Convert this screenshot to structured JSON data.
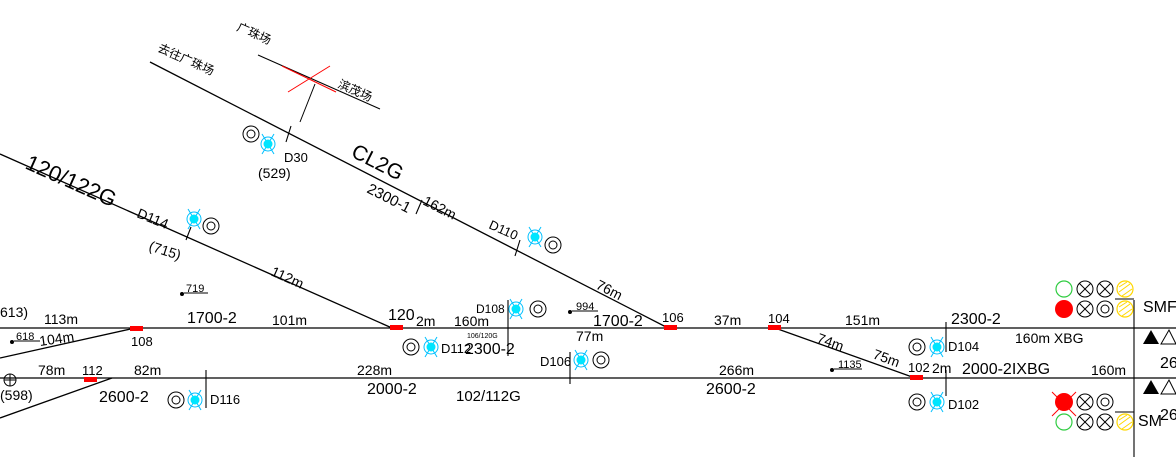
{
  "diagram": {
    "branch_labels": {
      "guangzhu": "广珠场",
      "quguangzhu": "去往广珠场",
      "binmao": "滨茂场"
    },
    "track_names": {
      "t120_122g": "120/122G",
      "cl2g": "CL2G",
      "t102_112g": "102/112G"
    },
    "signals": {
      "d30": "D30",
      "d114": "D114",
      "d110": "D110",
      "d108": "D108",
      "d112": "D112",
      "d106": "D106",
      "d104": "D104",
      "d102": "D102",
      "d116": "D116",
      "sm_upper": "SMF",
      "sm_lower": "SM"
    },
    "switches": {
      "s108": "108",
      "s120": "120",
      "s106": "106",
      "s104": "104",
      "s102": "102",
      "s112": "112"
    },
    "mileage": {
      "m529": "(529)",
      "m715": "(715)",
      "m719": "719",
      "m994": "994",
      "m618": "618",
      "m613": "613)",
      "m598": "(598)",
      "m1135": "1135",
      "m106_120g": "106/120G"
    },
    "segments": {
      "cl_2300_1": "2300-1",
      "cl_162m": "162m",
      "cl_76m": "76m",
      "diag_112m": "112m",
      "top_113m": "113m",
      "top_1700_2a": "1700-2",
      "top_101m": "101m",
      "top_2m_a": "2m",
      "top_160m": "160m",
      "top_1700_2b": "1700-2",
      "top_37m": "37m",
      "top_151m": "151m",
      "top_2300_2": "2300-2",
      "top_160m_xbg": "160m XBG",
      "mid_104m": "104m",
      "mid_2300_2": "2300-2",
      "mid_77m": "77m",
      "mid_74m": "74m",
      "mid_75m": "75m",
      "mid_2m_b": "2m",
      "bot_78m": "78m",
      "bot_82m": "82m",
      "bot_2600_2a": "2600-2",
      "bot_228m": "228m",
      "bot_2000_2": "2000-2",
      "bot_266m": "266m",
      "bot_2600_2b": "2600-2",
      "bot_2000_2_ixbg": "2000-2IXBG",
      "bot_160m": "160m",
      "edge_26_a": "26",
      "edge_26_b": "26"
    },
    "colors": {
      "track": "#000000",
      "joint": "#ff0000",
      "signal_lamp": "#00e5ff",
      "signal_halo": "#00c0ff",
      "red_lamp": "#ff0000",
      "green_lamp": "#2ecc40",
      "yellow_lamp": "#ffd700",
      "crossing": "#ff0000"
    }
  }
}
